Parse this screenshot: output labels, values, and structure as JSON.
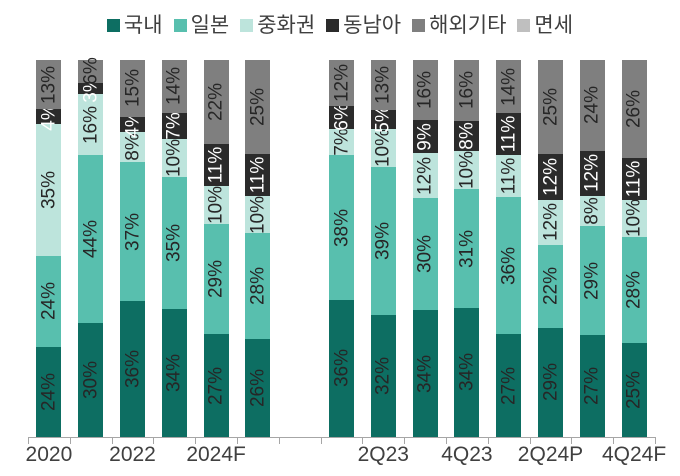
{
  "chart_data": {
    "type": "bar",
    "stacked": true,
    "percent_stacked": true,
    "unit": "%",
    "title": "",
    "xlabel": "",
    "ylabel": "",
    "grid": false,
    "legend_position": "top",
    "legend": [
      {
        "label": "국내",
        "color": "#0d6e62"
      },
      {
        "label": "일본",
        "color": "#58bfae"
      },
      {
        "label": "중화권",
        "color": "#bde4dc"
      },
      {
        "label": "동남아",
        "color": "#2b2b2b"
      },
      {
        "label": "해외기타",
        "color": "#7f7f7f"
      },
      {
        "label": "면세",
        "color": "#bfbfbf"
      }
    ],
    "series_names": [
      "국내",
      "일본",
      "중화권",
      "동남아",
      "해외기타",
      "면세"
    ],
    "total_slots": 15,
    "gap_slots": [
      6
    ],
    "bars": [
      {
        "slot": 0,
        "axis_label": "2020",
        "values": [
          24,
          24,
          35,
          4,
          13,
          0
        ]
      },
      {
        "slot": 1,
        "axis_label": "",
        "values": [
          30,
          44,
          16,
          3,
          6,
          0
        ]
      },
      {
        "slot": 2,
        "axis_label": "2022",
        "values": [
          36,
          37,
          8,
          4,
          15,
          0
        ]
      },
      {
        "slot": 3,
        "axis_label": "",
        "values": [
          34,
          35,
          10,
          7,
          14,
          0
        ]
      },
      {
        "slot": 4,
        "axis_label": "2024F",
        "values": [
          27,
          29,
          10,
          11,
          22,
          0
        ]
      },
      {
        "slot": 5,
        "axis_label": "",
        "values": [
          26,
          28,
          10,
          11,
          25,
          0
        ]
      },
      {
        "slot": 7,
        "axis_label": "",
        "values": [
          36,
          38,
          7,
          6,
          12,
          0
        ]
      },
      {
        "slot": 8,
        "axis_label": "2Q23",
        "values": [
          32,
          39,
          10,
          5,
          13,
          0
        ]
      },
      {
        "slot": 9,
        "axis_label": "",
        "values": [
          34,
          30,
          12,
          9,
          16,
          0
        ]
      },
      {
        "slot": 10,
        "axis_label": "4Q23",
        "values": [
          34,
          31,
          10,
          8,
          16,
          0
        ]
      },
      {
        "slot": 11,
        "axis_label": "",
        "values": [
          27,
          36,
          11,
          11,
          14,
          0
        ]
      },
      {
        "slot": 12,
        "axis_label": "2Q24P",
        "values": [
          29,
          22,
          12,
          12,
          25,
          0
        ]
      },
      {
        "slot": 13,
        "axis_label": "",
        "values": [
          27,
          29,
          8,
          12,
          24,
          0
        ]
      },
      {
        "slot": 14,
        "axis_label": "4Q24F",
        "values": [
          25,
          28,
          10,
          11,
          26,
          0
        ]
      }
    ],
    "label_colors": {
      "default": "#262626",
      "on_dark_series_index": 3,
      "on_dark": "#ffffff"
    },
    "axis_color": "#a6a6a6"
  }
}
